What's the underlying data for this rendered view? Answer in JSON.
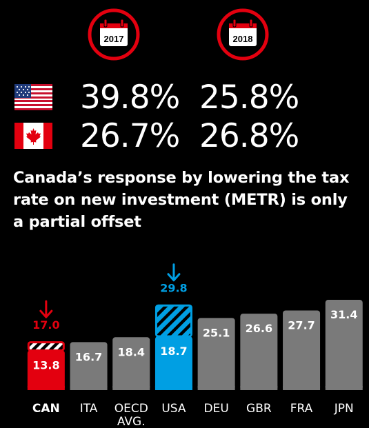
{
  "header": {
    "years": [
      "2017",
      "2018"
    ],
    "rows": [
      {
        "country": "USA",
        "flag_icon": "us-flag-icon",
        "rate_2017": "39.8%",
        "rate_2018": "25.8%"
      },
      {
        "country": "Canada",
        "flag_icon": "canada-flag-icon",
        "rate_2017": "26.7%",
        "rate_2018": "26.8%"
      }
    ]
  },
  "headline": "Canada’s response by lowering the tax rate on new investment (METR) is only a partial offset",
  "colors": {
    "red": "#e3000f",
    "blue": "#009fe3",
    "gray": "#7a7a7a",
    "background": "#000000"
  },
  "chart_data": {
    "type": "bar",
    "categories": [
      "CAN",
      "ITA",
      "OECD AVG.",
      "USA",
      "DEU",
      "GBR",
      "FRA",
      "JPN"
    ],
    "values": [
      13.8,
      16.7,
      18.4,
      18.7,
      25.1,
      26.6,
      27.7,
      31.4
    ],
    "labels": [
      "13.8",
      "16.7",
      "18.4",
      "18.7",
      "25.1",
      "26.6",
      "27.7",
      "31.4"
    ],
    "previous": [
      {
        "category": "CAN",
        "value": 17.0,
        "label": "17.0",
        "arrow": "down"
      },
      {
        "category": "USA",
        "value": 29.8,
        "label": "29.8",
        "arrow": "down"
      }
    ],
    "highlight": {
      "CAN": "#e3000f",
      "USA": "#009fe3"
    },
    "bold_category": "CAN",
    "ylim": [
      0,
      32
    ],
    "grid": false,
    "title": "",
    "xlabel": "",
    "ylabel": ""
  }
}
